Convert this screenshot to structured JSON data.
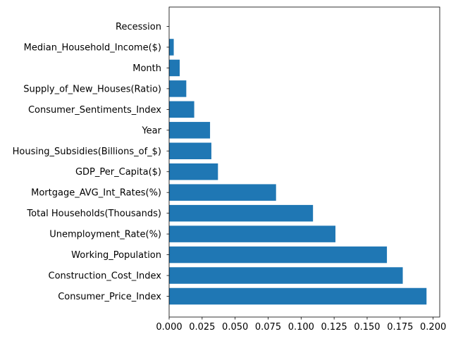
{
  "chart_data": {
    "type": "bar",
    "orientation": "horizontal",
    "title": "",
    "xlabel": "",
    "ylabel": "",
    "xlim": [
      0,
      0.205
    ],
    "x_ticks": [
      0.0,
      0.025,
      0.05,
      0.075,
      0.1,
      0.125,
      0.15,
      0.175,
      0.2
    ],
    "x_tick_labels": [
      "0.000",
      "0.025",
      "0.050",
      "0.075",
      "0.100",
      "0.125",
      "0.150",
      "0.175",
      "0.200"
    ],
    "grid": false,
    "bar_color": "#1f77b4",
    "categories": [
      "Consumer_Price_Index",
      "Construction_Cost_Index",
      "Working_Population",
      "Unemployment_Rate(%)",
      "Total Households(Thousands)",
      "Mortgage_AVG_Int_Rates(%)",
      "GDP_Per_Capita($)",
      "Housing_Subsidies(Billions_of_$)",
      "Year",
      "Consumer_Sentiments_Index",
      "Supply_of_New_Houses(Ratio)",
      "Month",
      "Median_Household_Income($)",
      "Recession"
    ],
    "values": [
      0.195,
      0.177,
      0.165,
      0.126,
      0.109,
      0.081,
      0.037,
      0.032,
      0.031,
      0.019,
      0.013,
      0.008,
      0.0035,
      0.0
    ]
  }
}
